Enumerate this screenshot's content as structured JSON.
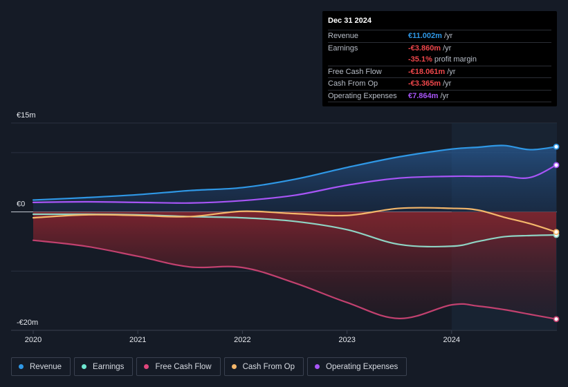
{
  "tooltip": {
    "date": "Dec 31 2024",
    "rows": [
      {
        "label": "Revenue",
        "value": "€11.002m",
        "unit": "/yr",
        "color": "#2f98e6"
      },
      {
        "label": "Earnings",
        "value": "-€3.860m",
        "unit": "/yr",
        "color": "#f0474b"
      },
      {
        "label": "",
        "value": "-35.1%",
        "unit": "profit margin",
        "color": "#f0474b"
      },
      {
        "label": "Free Cash Flow",
        "value": "-€18.061m",
        "unit": "/yr",
        "color": "#f0474b"
      },
      {
        "label": "Cash From Op",
        "value": "-€3.365m",
        "unit": "/yr",
        "color": "#f0474b"
      },
      {
        "label": "Operating Expenses",
        "value": "€7.864m",
        "unit": "/yr",
        "color": "#a855f7"
      }
    ]
  },
  "legend": [
    {
      "label": "Revenue",
      "color": "#2f98e6"
    },
    {
      "label": "Earnings",
      "color": "#6ee7d0"
    },
    {
      "label": "Free Cash Flow",
      "color": "#e0467c"
    },
    {
      "label": "Cash From Op",
      "color": "#f4b76b"
    },
    {
      "label": "Operating Expenses",
      "color": "#a855f7"
    }
  ],
  "chart_data": {
    "type": "area",
    "title": "",
    "xlabel": "",
    "ylabel": "",
    "ylim": [
      -20,
      15
    ],
    "xlim": [
      2019.9,
      2025.0
    ],
    "y_tick_labels": [
      {
        "value": 15,
        "label": "€15m"
      },
      {
        "value": 0,
        "label": "€0"
      },
      {
        "value": -20,
        "label": "-€20m"
      }
    ],
    "x_tick_labels": [
      {
        "value": 2020,
        "label": "2020"
      },
      {
        "value": 2021,
        "label": "2021"
      },
      {
        "value": 2022,
        "label": "2022"
      },
      {
        "value": 2023,
        "label": "2023"
      },
      {
        "value": 2024,
        "label": "2024"
      }
    ],
    "highlight_from": 2024.0,
    "series": [
      {
        "name": "Revenue",
        "color": "#2f98e6",
        "points": [
          [
            2020.0,
            2.0
          ],
          [
            2020.5,
            2.4
          ],
          [
            2021.0,
            2.9
          ],
          [
            2021.5,
            3.6
          ],
          [
            2022.0,
            4.1
          ],
          [
            2022.5,
            5.5
          ],
          [
            2023.0,
            7.5
          ],
          [
            2023.5,
            9.3
          ],
          [
            2024.0,
            10.6
          ],
          [
            2024.25,
            10.9
          ],
          [
            2024.5,
            11.2
          ],
          [
            2024.75,
            10.5
          ],
          [
            2025.0,
            11.0
          ]
        ]
      },
      {
        "name": "Operating Expenses",
        "color": "#a855f7",
        "points": [
          [
            2020.0,
            1.6
          ],
          [
            2020.5,
            1.7
          ],
          [
            2021.0,
            1.6
          ],
          [
            2021.5,
            1.5
          ],
          [
            2022.0,
            1.9
          ],
          [
            2022.5,
            2.8
          ],
          [
            2023.0,
            4.5
          ],
          [
            2023.5,
            5.7
          ],
          [
            2024.0,
            6.0
          ],
          [
            2024.25,
            6.0
          ],
          [
            2024.5,
            6.0
          ],
          [
            2024.75,
            5.8
          ],
          [
            2025.0,
            7.9
          ]
        ]
      },
      {
        "name": "Earnings",
        "color": "#8fd4c4",
        "points": [
          [
            2020.0,
            -0.4
          ],
          [
            2020.5,
            -0.4
          ],
          [
            2021.0,
            -0.5
          ],
          [
            2021.5,
            -0.8
          ],
          [
            2022.0,
            -1.0
          ],
          [
            2022.5,
            -1.6
          ],
          [
            2023.0,
            -3.0
          ],
          [
            2023.5,
            -5.5
          ],
          [
            2024.0,
            -5.8
          ],
          [
            2024.25,
            -5.0
          ],
          [
            2024.5,
            -4.2
          ],
          [
            2024.75,
            -4.0
          ],
          [
            2025.0,
            -3.9
          ]
        ]
      },
      {
        "name": "Cash From Op",
        "color": "#f4b76b",
        "points": [
          [
            2020.0,
            -1.0
          ],
          [
            2020.5,
            -0.5
          ],
          [
            2021.0,
            -0.6
          ],
          [
            2021.5,
            -0.8
          ],
          [
            2022.0,
            0.1
          ],
          [
            2022.5,
            -0.3
          ],
          [
            2023.0,
            -0.6
          ],
          [
            2023.5,
            0.6
          ],
          [
            2024.0,
            0.6
          ],
          [
            2024.25,
            0.3
          ],
          [
            2024.5,
            -0.9
          ],
          [
            2024.75,
            -2.0
          ],
          [
            2025.0,
            -3.4
          ]
        ]
      },
      {
        "name": "Free Cash Flow",
        "color": "#c2416f",
        "points": [
          [
            2020.0,
            -4.8
          ],
          [
            2020.5,
            -5.8
          ],
          [
            2021.0,
            -7.5
          ],
          [
            2021.5,
            -9.3
          ],
          [
            2022.0,
            -9.4
          ],
          [
            2022.5,
            -12.0
          ],
          [
            2023.0,
            -15.3
          ],
          [
            2023.5,
            -18.0
          ],
          [
            2024.0,
            -15.7
          ],
          [
            2024.25,
            -15.9
          ],
          [
            2024.5,
            -16.5
          ],
          [
            2024.75,
            -17.3
          ],
          [
            2025.0,
            -18.1
          ]
        ]
      }
    ]
  }
}
